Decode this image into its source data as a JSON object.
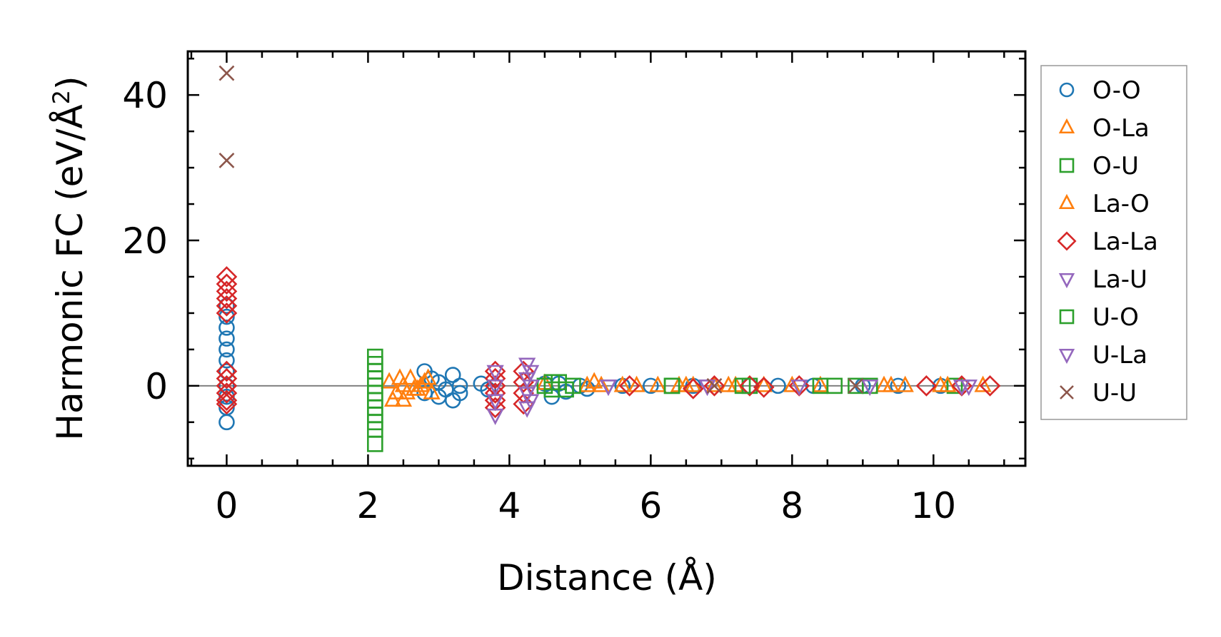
{
  "chart_data": {
    "type": "scatter",
    "xlabel": "Distance (Å)",
    "ylabel_main": "Harmonic FC (eV/Å",
    "ylabel_sup": "2",
    "ylabel_close": ")",
    "xlim": [
      -0.55,
      11.3
    ],
    "ylim": [
      -11,
      46
    ],
    "xticks": [
      0,
      2,
      4,
      6,
      8,
      10
    ],
    "xtick_labels": [
      "0",
      "2",
      "4",
      "6",
      "8",
      "10"
    ],
    "yticks": [
      0,
      20,
      40
    ],
    "ytick_labels": [
      "0",
      "20",
      "40"
    ],
    "x_minor_step": 0.5,
    "y_minor_step": 5,
    "zero_line": true,
    "grid": false,
    "legend_position": "outside-right",
    "series": [
      {
        "name": "O-O",
        "marker": "circle",
        "color": "#1f77b4",
        "points": [
          [
            0,
            -5
          ],
          [
            0,
            -3
          ],
          [
            0,
            -1.5
          ],
          [
            0,
            0
          ],
          [
            0,
            2
          ],
          [
            0,
            3.5
          ],
          [
            0,
            5
          ],
          [
            0,
            6.5
          ],
          [
            0,
            8
          ],
          [
            0,
            9.5
          ],
          [
            0,
            11
          ],
          [
            2.8,
            2
          ],
          [
            2.8,
            -1
          ],
          [
            2.9,
            1
          ],
          [
            3.0,
            0.5
          ],
          [
            3.0,
            -1.5
          ],
          [
            3.1,
            -0.5
          ],
          [
            3.2,
            1.5
          ],
          [
            3.2,
            -2
          ],
          [
            3.3,
            0
          ],
          [
            3.3,
            -1
          ],
          [
            3.6,
            0.3
          ],
          [
            3.7,
            -0.5
          ],
          [
            4.5,
            0.3
          ],
          [
            4.6,
            -1.5
          ],
          [
            4.7,
            0.3
          ],
          [
            4.8,
            -0.8
          ],
          [
            5.0,
            0
          ],
          [
            5.1,
            -0.4
          ],
          [
            5.6,
            0
          ],
          [
            6.0,
            0
          ],
          [
            6.6,
            0
          ],
          [
            7.4,
            0
          ],
          [
            7.8,
            0
          ],
          [
            8.3,
            0
          ],
          [
            9.0,
            0
          ],
          [
            9.5,
            0
          ],
          [
            10.1,
            0
          ]
        ]
      },
      {
        "name": "O-La",
        "marker": "triangle-up",
        "color": "#ff7f0e",
        "points": [
          [
            2.3,
            0.5
          ],
          [
            2.4,
            -1
          ],
          [
            2.5,
            0
          ],
          [
            2.5,
            -2
          ],
          [
            2.6,
            1
          ],
          [
            2.7,
            -0.5
          ],
          [
            2.8,
            0.5
          ],
          [
            2.9,
            -1
          ],
          [
            4.5,
            0.3
          ],
          [
            5.1,
            0
          ],
          [
            5.3,
            0
          ],
          [
            5.8,
            0
          ],
          [
            6.4,
            0
          ],
          [
            6.6,
            0
          ],
          [
            6.9,
            0
          ],
          [
            7.2,
            0
          ],
          [
            7.6,
            0
          ],
          [
            8.4,
            0
          ],
          [
            9.3,
            0
          ],
          [
            9.6,
            0
          ],
          [
            10.1,
            0
          ],
          [
            10.7,
            0
          ]
        ]
      },
      {
        "name": "O-U",
        "marker": "square",
        "color": "#2ca02c",
        "points": [
          [
            2.1,
            4
          ],
          [
            2.1,
            3
          ],
          [
            2.1,
            2
          ],
          [
            2.1,
            1
          ],
          [
            2.1,
            0
          ],
          [
            2.1,
            -1
          ],
          [
            2.1,
            -2
          ],
          [
            2.1,
            -3
          ],
          [
            2.1,
            -4
          ],
          [
            2.1,
            -5
          ],
          [
            2.1,
            -6
          ],
          [
            2.1,
            -8
          ],
          [
            4.5,
            0
          ],
          [
            4.6,
            -0.5
          ],
          [
            4.7,
            0.5
          ],
          [
            4.9,
            0
          ],
          [
            6.3,
            0
          ],
          [
            7.4,
            0
          ],
          [
            8.4,
            0
          ],
          [
            8.9,
            0
          ],
          [
            10.3,
            0
          ]
        ]
      },
      {
        "name": "La-O",
        "marker": "triangle-up",
        "color": "#ff7f0e",
        "points": [
          [
            2.35,
            -2
          ],
          [
            2.45,
            1
          ],
          [
            2.55,
            -1
          ],
          [
            2.65,
            -0.5
          ],
          [
            2.75,
            0
          ],
          [
            2.85,
            1
          ],
          [
            5.2,
            0.5
          ],
          [
            5.6,
            0
          ],
          [
            6.1,
            0
          ],
          [
            6.5,
            0
          ],
          [
            7.1,
            0
          ],
          [
            8.0,
            0
          ],
          [
            9.4,
            0
          ],
          [
            10.2,
            0
          ]
        ]
      },
      {
        "name": "La-La",
        "marker": "diamond",
        "color": "#d62728",
        "points": [
          [
            0,
            15
          ],
          [
            0,
            14
          ],
          [
            0,
            13
          ],
          [
            0,
            12
          ],
          [
            0,
            11
          ],
          [
            0,
            10
          ],
          [
            0,
            2
          ],
          [
            0,
            1
          ],
          [
            0,
            0
          ],
          [
            0,
            -1
          ],
          [
            0,
            -2
          ],
          [
            0,
            -2.5
          ],
          [
            3.8,
            2
          ],
          [
            3.8,
            1
          ],
          [
            3.8,
            0
          ],
          [
            3.8,
            -1
          ],
          [
            3.8,
            -2
          ],
          [
            3.8,
            -3
          ],
          [
            4.2,
            -2.5
          ],
          [
            4.2,
            -1
          ],
          [
            4.2,
            0.5
          ],
          [
            4.2,
            2
          ],
          [
            5.7,
            0
          ],
          [
            6.6,
            -0.4
          ],
          [
            6.9,
            0
          ],
          [
            7.4,
            0
          ],
          [
            7.6,
            -0.2
          ],
          [
            8.1,
            0
          ],
          [
            9.9,
            0
          ],
          [
            10.4,
            0
          ],
          [
            10.8,
            0
          ]
        ]
      },
      {
        "name": "La-U",
        "marker": "triangle-down",
        "color": "#9467bd",
        "points": [
          [
            3.8,
            -4
          ],
          [
            3.8,
            -2
          ],
          [
            3.8,
            0
          ],
          [
            3.8,
            2
          ],
          [
            4.3,
            -2
          ],
          [
            4.3,
            0
          ],
          [
            4.3,
            2
          ],
          [
            5.4,
            0
          ],
          [
            6.8,
            0
          ],
          [
            8.1,
            0
          ],
          [
            10.5,
            0
          ]
        ]
      },
      {
        "name": "U-O",
        "marker": "square",
        "color": "#2ca02c",
        "points": [
          [
            4.6,
            0.5
          ],
          [
            4.8,
            -0.5
          ],
          [
            6.3,
            0
          ],
          [
            7.3,
            0
          ],
          [
            8.6,
            0
          ],
          [
            9.1,
            0
          ]
        ]
      },
      {
        "name": "U-La",
        "marker": "triangle-down",
        "color": "#9467bd",
        "points": [
          [
            4.25,
            3
          ],
          [
            4.25,
            1
          ],
          [
            4.25,
            -1
          ],
          [
            4.25,
            -3
          ],
          [
            5.4,
            0
          ],
          [
            6.8,
            0
          ],
          [
            9.1,
            0
          ],
          [
            10.4,
            0
          ]
        ]
      },
      {
        "name": "U-U",
        "marker": "x",
        "color": "#8c564b",
        "points": [
          [
            0,
            43
          ],
          [
            0,
            31
          ],
          [
            6.9,
            0
          ],
          [
            8.9,
            0
          ]
        ]
      }
    ]
  }
}
